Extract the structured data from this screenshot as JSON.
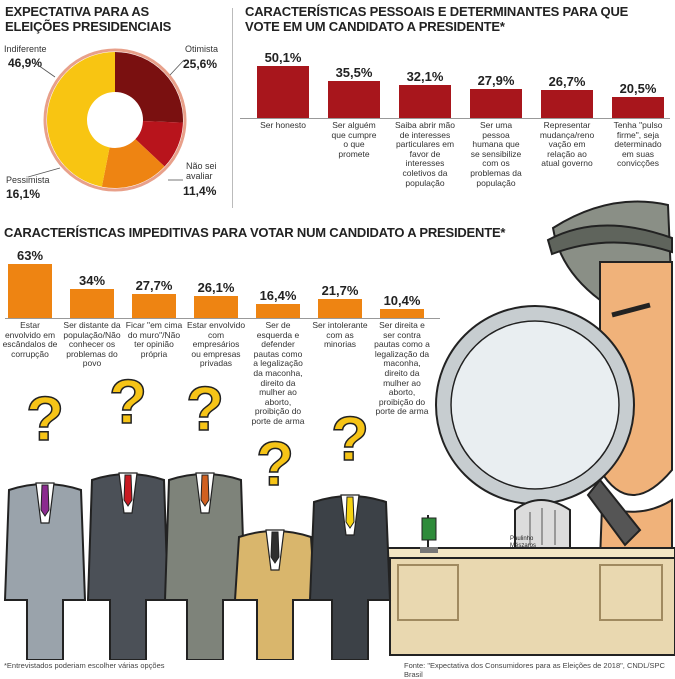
{
  "chart_data": [
    {
      "type": "pie",
      "title": "EXPECTATIVA PARA AS ELEIÇÕES PRESIDENCIAIS",
      "slices": [
        {
          "label": "Otimista",
          "value": 25.6,
          "display": "25,6%",
          "color": "#7a1010"
        },
        {
          "label": "Não sei avaliar",
          "value": 11.4,
          "display": "11,4%",
          "color": "#b8141c"
        },
        {
          "label": "Pessimista",
          "value": 16.1,
          "display": "16,1%",
          "color": "#ee8412"
        },
        {
          "label": "Indiferente",
          "value": 46.9,
          "display": "46,9%",
          "color": "#f8c512"
        }
      ]
    },
    {
      "type": "bar",
      "title": "CARACTERÍSTICAS PESSOAIS E DETERMINANTES PARA QUE VOTE EM UM CANDIDATO A PRESIDENTE*",
      "color": "#a8161c",
      "categories": [
        "Ser honesto",
        "Ser alguém que cumpre o que promete",
        "Saiba abrir mão de interesses particulares em favor de interesses coletivos da população",
        "Ser uma pessoa humana que se sensibilize com os problemas da população",
        "Representar mudança/renovação em relação ao atual governo",
        "Tenha \"pulso firme\", seja determinado em suas convicções"
      ],
      "values": [
        50.1,
        35.5,
        32.1,
        27.9,
        26.7,
        20.5
      ],
      "display": [
        "50,1%",
        "35,5%",
        "32,1%",
        "27,9%",
        "26,7%",
        "20,5%"
      ]
    },
    {
      "type": "bar",
      "title": "CARACTERÍSTICAS IMPEDITIVAS PARA VOTAR NUM CANDIDATO A PRESIDENTE*",
      "color": "#ee8412",
      "categories": [
        "Estar envolvido em escândalos de corrupção",
        "Ser distante da população/Não conhecer os problemas do povo",
        "Ficar \"em cima do muro\"/Não ter opinião própria",
        "Estar envolvido com empresários ou empresas privadas",
        "Ser de esquerda e defender pautas como a legalização da maconha, direito da mulher ao aborto, proibição do porte de arma",
        "Ser intolerante com as minorias",
        "Ser direita e ser contra pautas como a legalização da maconha, direito da mulher ao aborto, proibição do porte de arma"
      ],
      "values": [
        63,
        34,
        27.7,
        26.1,
        16.4,
        21.7,
        10.4
      ],
      "display": [
        "63%",
        "34%",
        "27,7%",
        "26,1%",
        "16,4%",
        "21,7%",
        "10,4%"
      ]
    }
  ],
  "labels": {
    "top_right": [
      [
        "Ser honesto"
      ],
      [
        "Ser alguém",
        "que cumpre",
        "o que",
        "promete"
      ],
      [
        "Saiba abrir mão",
        "de interesses",
        "particulares em",
        "favor de",
        "interesses",
        "coletivos da",
        "população"
      ],
      [
        "Ser uma",
        "pessoa",
        "humana que",
        "se sensibilize",
        "com os",
        "problemas da",
        "população"
      ],
      [
        "Representar",
        "mudança/reno",
        "vação em",
        "relação ao",
        "atual governo"
      ],
      [
        "Tenha \"pulso",
        "firme\", seja",
        "determinado",
        "em suas",
        "convicções"
      ]
    ],
    "impeditivas": [
      [
        "Estar",
        "envolvido em",
        "escândalos de",
        "corrupção"
      ],
      [
        "Ser distante da",
        "população/Não",
        "conhecer os",
        "problemas do",
        "povo"
      ],
      [
        "Ficar \"em cima",
        "do muro\"/Não",
        "ter opinião",
        "própria"
      ],
      [
        "Estar envolvido",
        "com",
        "empresários",
        "ou empresas",
        "privadas"
      ],
      [
        "Ser de",
        "esquerda e",
        "defender",
        "pautas como",
        "a legalização",
        "da maconha,",
        "direito da",
        "mulher ao",
        "aborto,",
        "proibição do",
        "porte de arma"
      ],
      [
        "Ser intolerante",
        "com as",
        "minorias"
      ],
      [
        "Ser direita e",
        "ser contra",
        "pautas como a",
        "legalização da",
        "maconha,",
        "direito da",
        "mulher ao",
        "aborto,",
        "proibição do",
        "porte de arma"
      ]
    ],
    "pie_title_lines": [
      "EXPECTATIVA PARA AS",
      "ELEIÇÕES PRESIDENCIAIS"
    ],
    "top_title_lines": [
      "CARACTERÍSTICAS PESSOAIS E DETERMINANTES PARA QUE",
      "VOTE EM UM CANDIDATO A PRESIDENTE*"
    ],
    "pie_slice_labels": {
      "otimista": "Otimista",
      "naosei": [
        "Não sei",
        "avaliar"
      ],
      "pessimista": "Pessimista",
      "indiferente": "Indiferente"
    }
  },
  "footer": {
    "note": "*Entrevistados poderiam escolher várias opções",
    "source": "Fonte: \"Expectativa dos Consumidores para as Eleições de 2018\", CNDL/SPC Brasil"
  },
  "illustration": {
    "signature": "Paulinho Mészaros",
    "icons": [
      "question-mark-icon",
      "magnifying-glass-icon",
      "detective-icon",
      "headless-suit-figure-icon",
      "desk-icon",
      "chair-icon",
      "flag-icon"
    ]
  }
}
